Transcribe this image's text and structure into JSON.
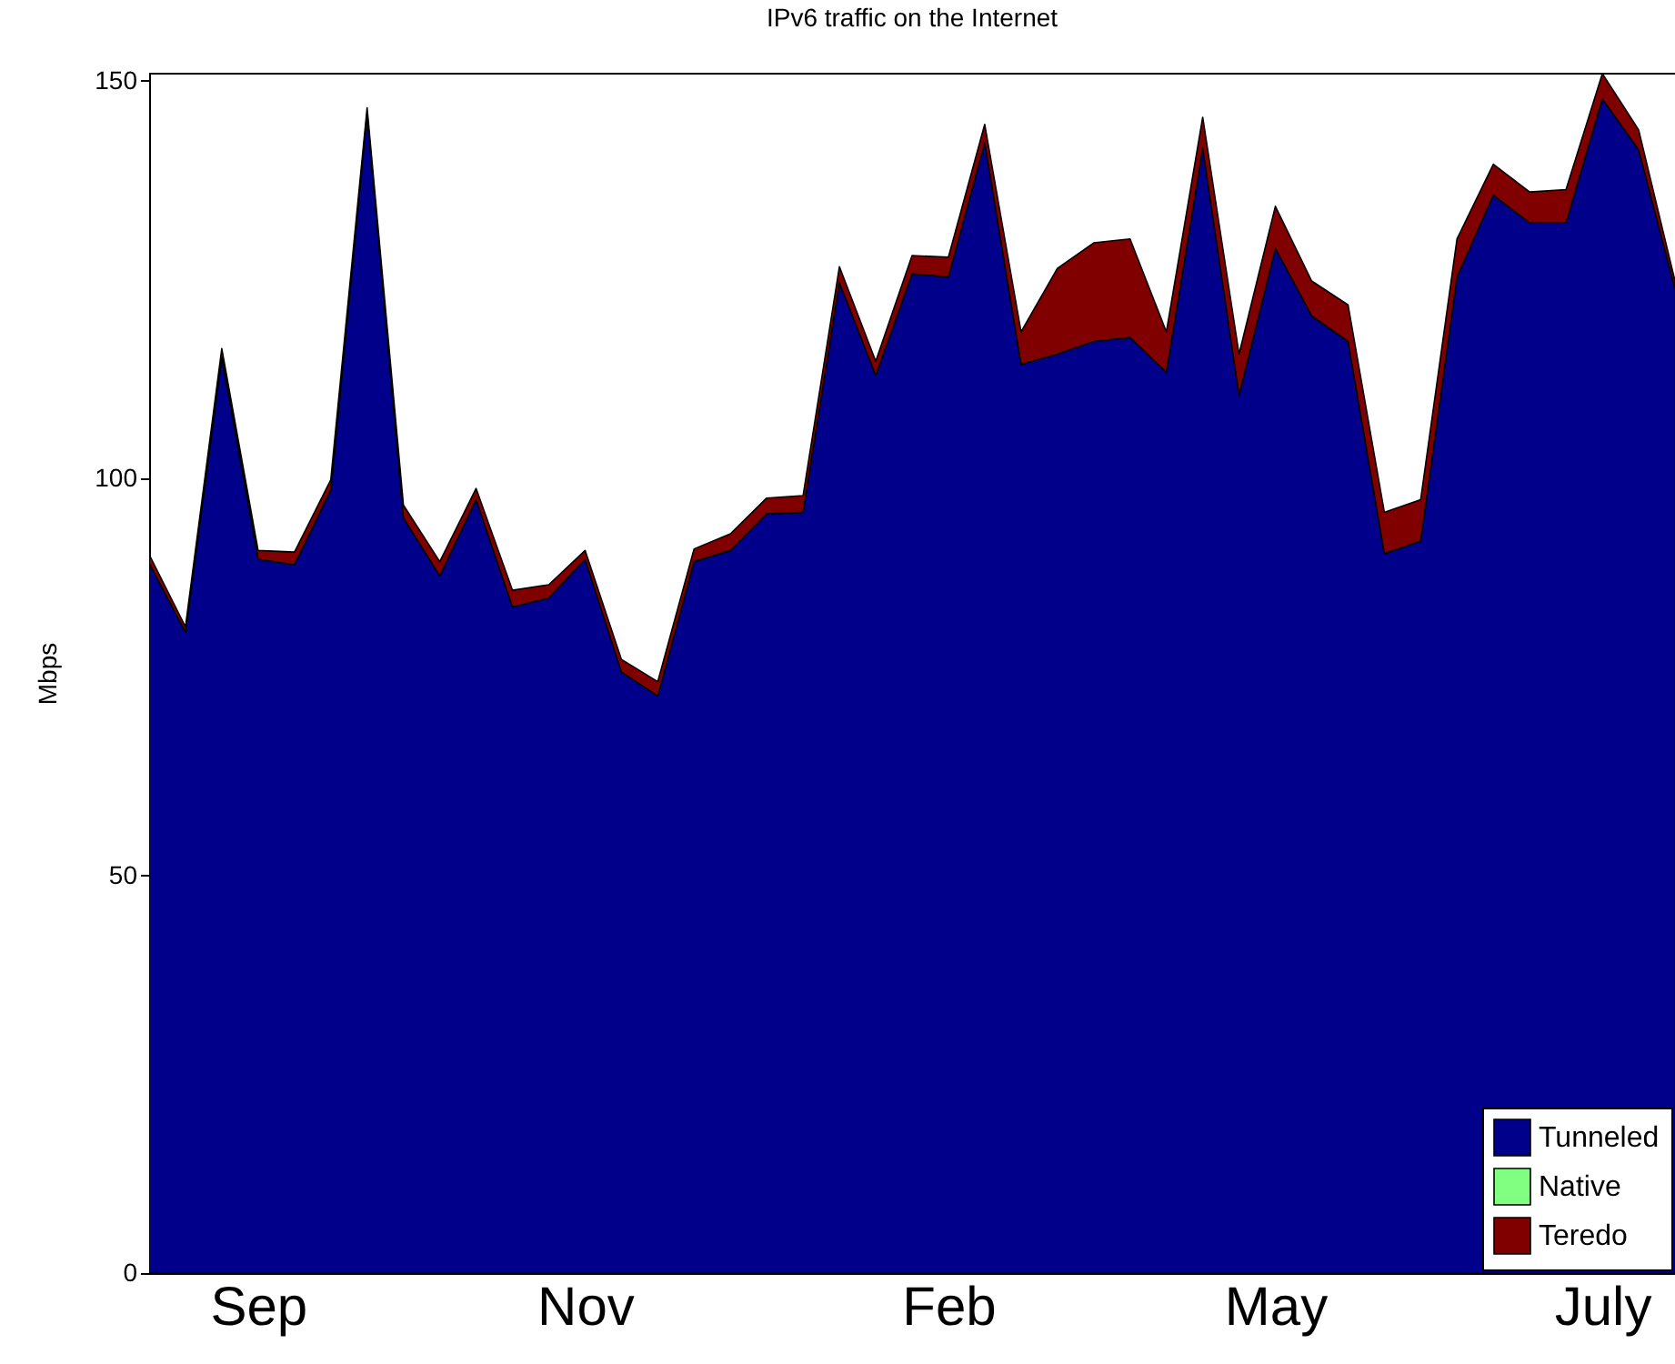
{
  "chart_data": {
    "type": "area",
    "title": "IPv6 traffic on the Internet",
    "ylabel": "Mbps",
    "stacked": true,
    "categories": [
      null,
      null,
      null,
      "Sep",
      null,
      null,
      null,
      null,
      null,
      null,
      null,
      null,
      "Nov",
      null,
      null,
      null,
      null,
      null,
      null,
      null,
      null,
      null,
      "Feb",
      null,
      null,
      null,
      null,
      null,
      null,
      null,
      null,
      "May",
      null,
      null,
      null,
      null,
      null,
      null,
      null,
      null,
      "July",
      null,
      null
    ],
    "ylim": [
      0,
      151
    ],
    "yticks": [
      0,
      50,
      100,
      150
    ],
    "grid": false,
    "legend": "bottom right",
    "series": [
      {
        "name": "Tunneled",
        "color": "#00008b",
        "values": [
          89.3,
          80.6,
          115.2,
          89.8,
          89.1,
          98.5,
          145.9,
          95.0,
          87.7,
          97.3,
          83.8,
          84.9,
          89.8,
          75.6,
          72.6,
          89.5,
          90.9,
          95.5,
          95.7,
          124.6,
          112.9,
          125.7,
          125.3,
          142.2,
          114.3,
          115.6,
          117.2,
          117.7,
          113.3,
          141.5,
          110.4,
          128.9,
          120.4,
          117.2,
          90.5,
          92.1,
          125.3,
          135.6,
          132.1,
          132.1,
          147.7,
          141.3,
          123.8
        ]
      },
      {
        "name": "Native",
        "color": "#80ff80",
        "values": [
          null,
          null,
          null,
          null,
          null,
          null,
          null,
          null,
          null,
          null,
          null,
          null,
          null,
          null,
          null,
          null,
          null,
          null,
          null,
          null,
          null,
          null,
          null,
          null,
          null,
          null,
          null,
          null,
          null,
          null,
          null,
          null,
          null,
          null,
          null,
          null,
          null,
          null,
          null,
          null,
          null,
          null,
          null
        ]
      },
      {
        "name": "Teredo",
        "color": "#800000",
        "values": [
          1.1,
          0.7,
          1.1,
          1.1,
          1.6,
          1.3,
          0.7,
          1.6,
          1.8,
          1.4,
          2.1,
          1.7,
          1.1,
          1.6,
          1.8,
          1.6,
          2.1,
          2.0,
          2.1,
          2.0,
          1.8,
          2.3,
          2.5,
          2.3,
          4.1,
          10.8,
          12.4,
          12.4,
          5.1,
          3.9,
          5.2,
          5.3,
          4.4,
          4.6,
          5.2,
          5.2,
          4.8,
          3.9,
          3.9,
          4.2,
          3.2,
          2.5,
          1.0
        ]
      }
    ]
  }
}
